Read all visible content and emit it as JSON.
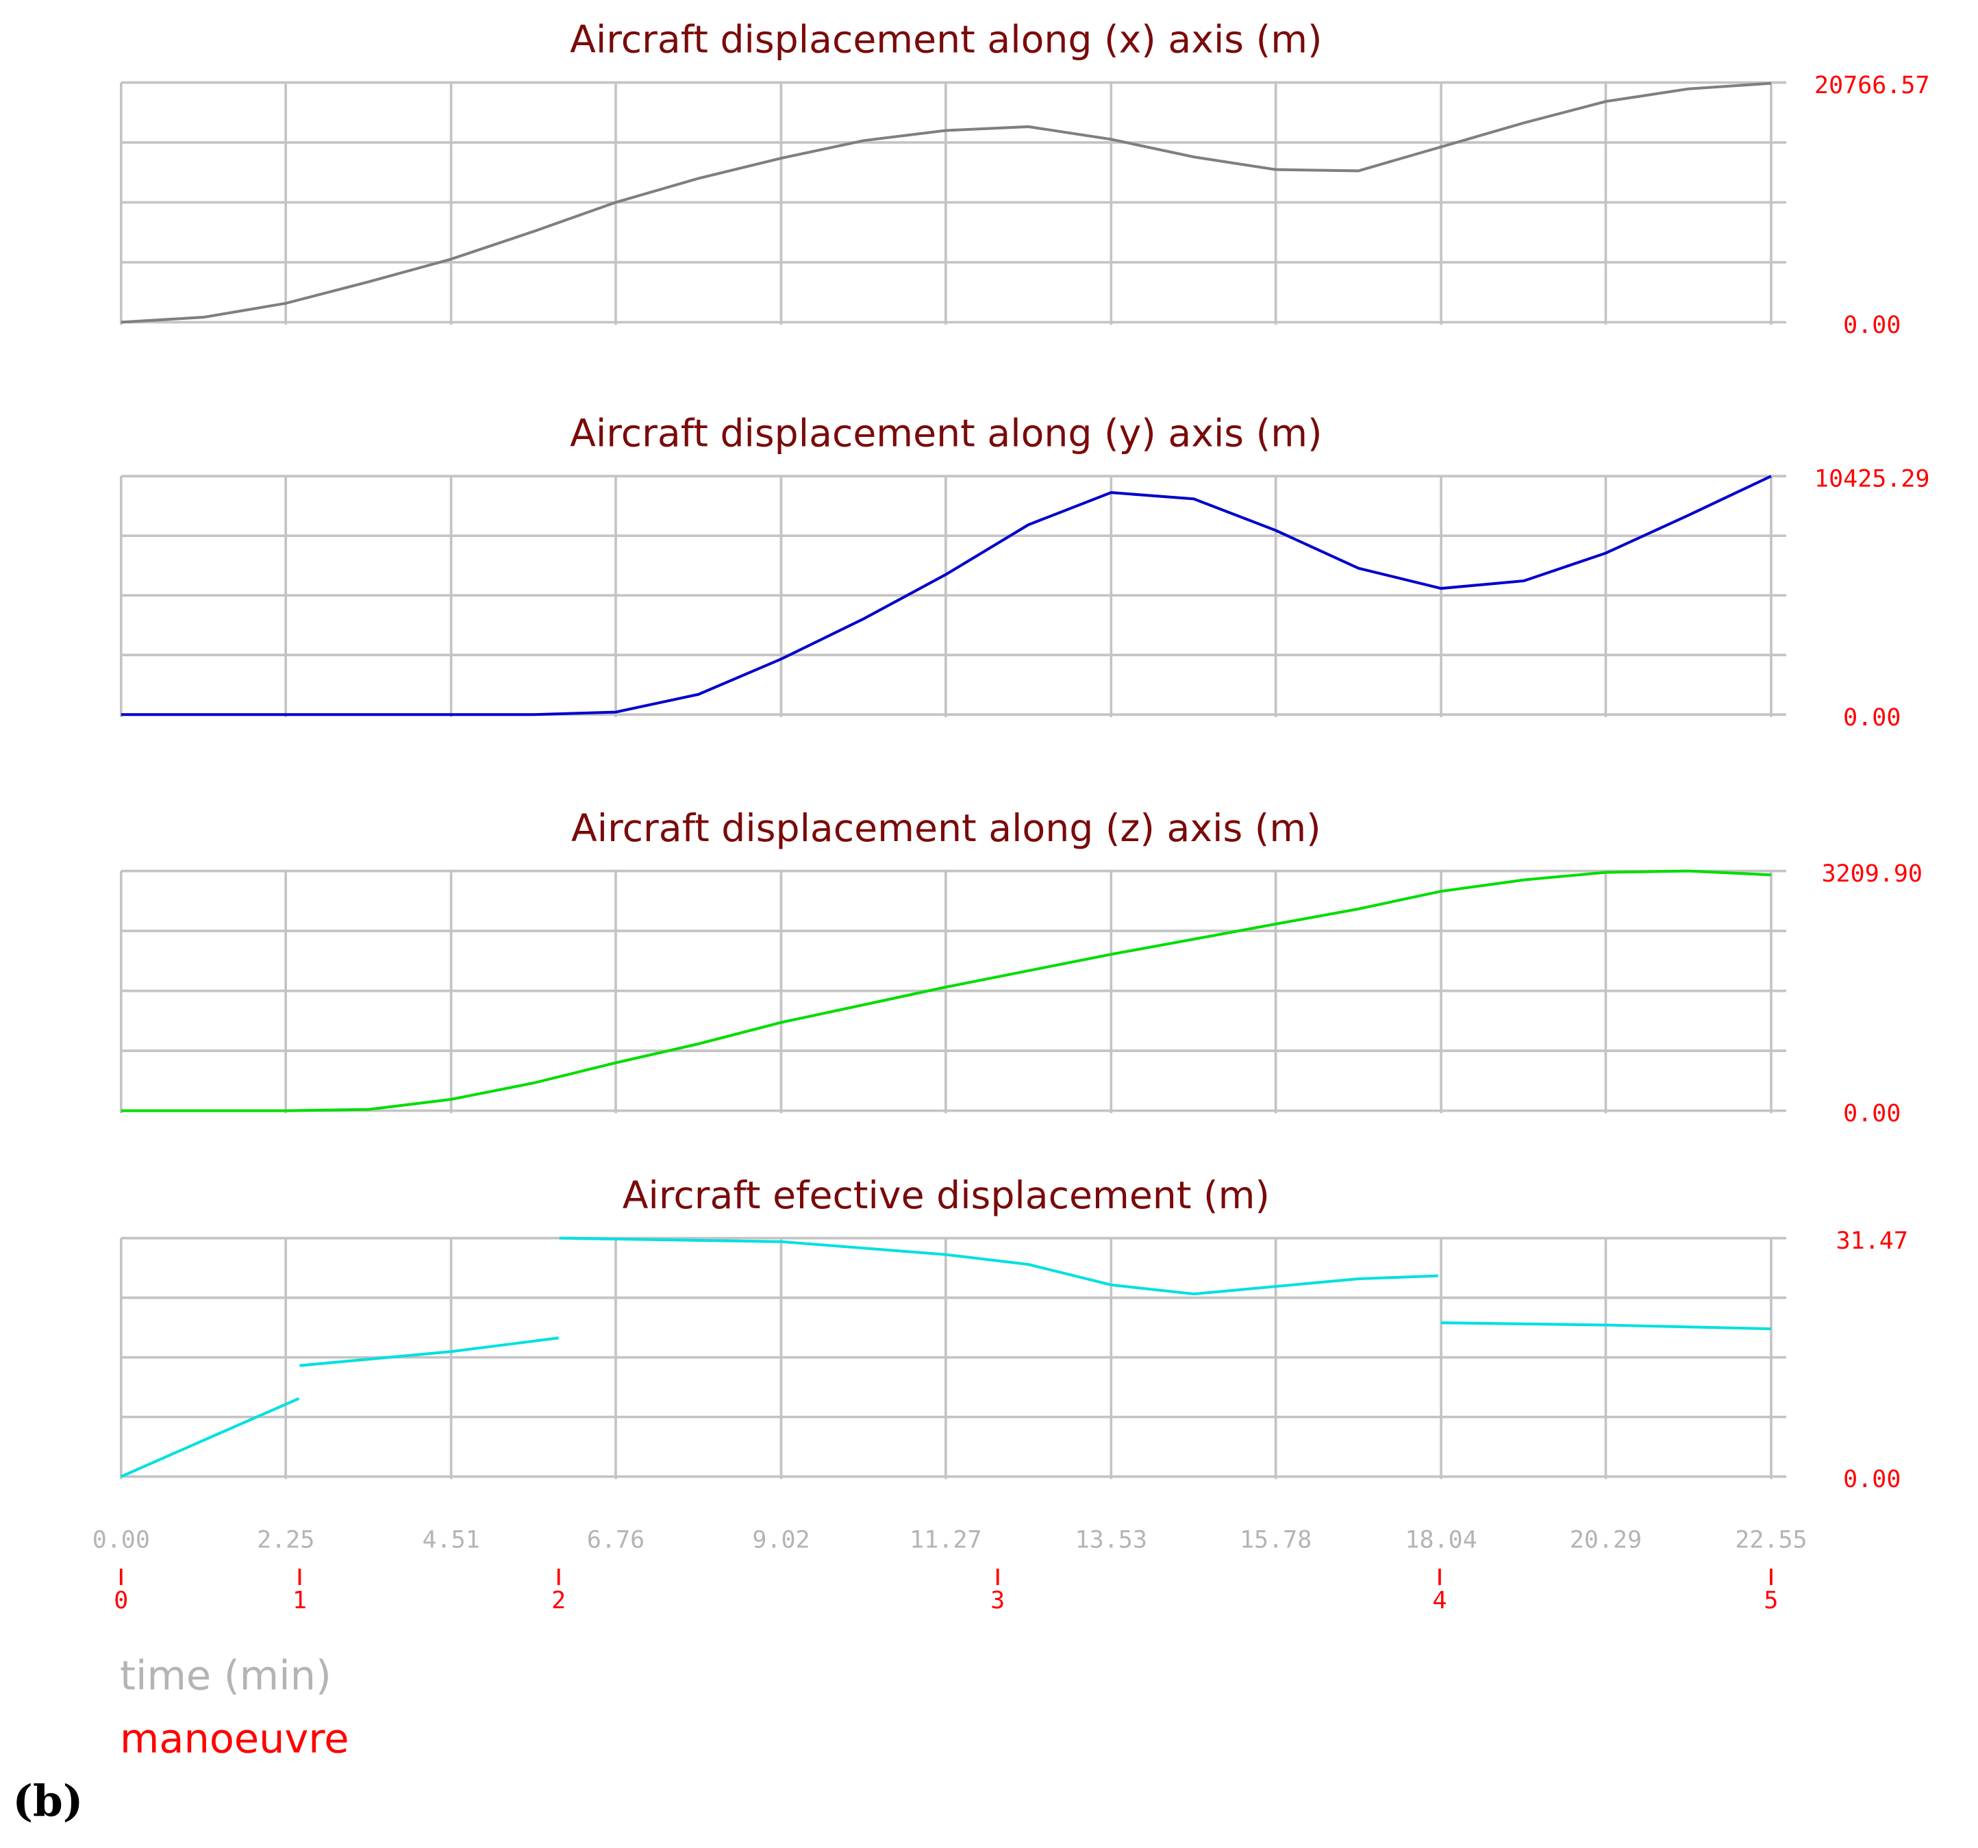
{
  "chart_data": [
    {
      "type": "line",
      "title": "Aircraft displacement along (x) axis (m)",
      "x": [
        0,
        1.13,
        2.25,
        3.38,
        4.51,
        5.64,
        6.76,
        7.89,
        9.02,
        10.15,
        11.27,
        12.4,
        13.53,
        14.66,
        15.78,
        16.91,
        18.04,
        19.17,
        20.29,
        21.42,
        22.55
      ],
      "values": [
        0,
        437,
        1640,
        3498,
        5465,
        7870,
        10383,
        12460,
        14209,
        15739,
        16613,
        16941,
        15848,
        14318,
        13225,
        13116,
        15193,
        17269,
        19127,
        20220,
        20700
      ],
      "color": "#7f7f7f",
      "xlim": [
        0,
        22.55
      ],
      "ylim": [
        0,
        20766.57
      ],
      "yticks": [
        {
          "value": 0,
          "label": "0.00"
        },
        20766.57
      ],
      "grid": true
    },
    {
      "type": "line",
      "title": "Aircraft displacement along (y) axis (m)",
      "x": [
        0,
        1.13,
        2.25,
        3.38,
        4.51,
        5.64,
        6.76,
        7.89,
        9.02,
        10.15,
        11.27,
        12.4,
        13.53,
        14.66,
        15.78,
        16.91,
        18.04,
        19.17,
        20.29,
        21.42,
        22.55
      ],
      "values": [
        0,
        0,
        0,
        0,
        0,
        0,
        110,
        883,
        2427,
        4192,
        6123,
        8300,
        9708,
        9432,
        8053,
        6399,
        5516,
        5847,
        7060,
        8715,
        10425.29
      ],
      "color": "#0000cc",
      "xlim": [
        0,
        22.55
      ],
      "ylim": [
        0,
        10425.29
      ],
      "yticks": [
        {
          "value": 0,
          "label": "0.00"
        },
        10425.29
      ],
      "grid": true
    },
    {
      "type": "line",
      "title": "Aircraft displacement along (z) axis (m)",
      "x": [
        0,
        1.13,
        2.25,
        3.38,
        4.51,
        5.64,
        6.76,
        7.89,
        9.02,
        10.15,
        11.27,
        12.4,
        13.53,
        14.66,
        15.78,
        16.91,
        18.04,
        19.17,
        20.29,
        21.42,
        22.55
      ],
      "values": [
        0,
        0,
        0,
        17,
        152,
        372,
        642,
        895,
        1182,
        1419,
        1655,
        1875,
        2094,
        2297,
        2500,
        2702,
        2939,
        3091,
        3192,
        3209.9,
        3158
      ],
      "color": "#00dd00",
      "xlim": [
        0,
        22.55
      ],
      "ylim": [
        0,
        3209.9
      ],
      "yticks": [
        {
          "value": 0,
          "label": "0.00"
        },
        {
          "value": 3209.9,
          "label": "3209.90"
        }
      ],
      "grid": true
    },
    {
      "type": "line",
      "title": "Aircraft efective displacement (m)",
      "x": [
        0,
        1.13,
        2.43,
        null,
        2.44,
        4.51,
        5.98,
        null,
        5.99,
        9.02,
        11.27,
        12.4,
        13.53,
        14.66,
        15.78,
        16.91,
        18.0,
        null,
        18.04,
        20.29,
        22.55
      ],
      "values": [
        0,
        4.8,
        10.3,
        null,
        14.65,
        16.5,
        18.3,
        null,
        31.47,
        31.0,
        29.3,
        28.0,
        25.3,
        24.1,
        25.1,
        26.1,
        26.5,
        null,
        20.3,
        20.0,
        19.5
      ],
      "color": "#00e0e0",
      "xlim": [
        0,
        22.55
      ],
      "ylim": [
        0,
        31.47
      ],
      "yticks": [
        {
          "value": 0,
          "label": "0.00"
        },
        31.47
      ],
      "grid": true,
      "xticks": [
        {
          "value": 0,
          "label": "0.00"
        },
        2.25,
        4.51,
        6.76,
        9.02,
        11.27,
        13.53,
        15.78,
        18.04,
        20.29,
        22.55
      ],
      "x_label": "time (min)",
      "manoeuvre_label": "manoeuvre",
      "manoeuvre_x": [
        0,
        2.44,
        5.98,
        11.98,
        18.02,
        22.55
      ],
      "manoeuvre_labels": [
        0,
        1,
        2,
        3,
        4,
        5
      ]
    }
  ],
  "panel_label": "(b)"
}
